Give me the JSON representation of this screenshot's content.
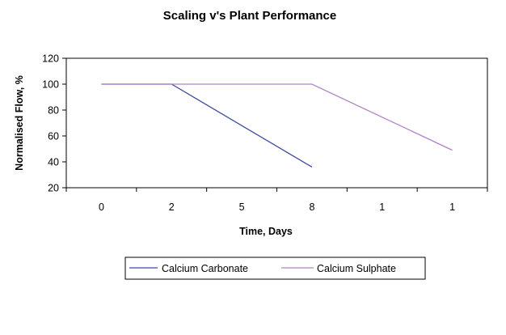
{
  "chart_data": {
    "type": "line",
    "title": "Scaling v's Plant Performance",
    "xlabel": "Time, Days",
    "ylabel": "Normalised Flow, %",
    "categories": [
      "0",
      "2",
      "5",
      "8",
      "1",
      "1"
    ],
    "ylim": [
      20,
      120
    ],
    "yticks": [
      20,
      40,
      60,
      80,
      100,
      120
    ],
    "grid": false,
    "legend_position": "bottom",
    "series": [
      {
        "name": "Calcium Carbonate",
        "color": "#3d4a9c",
        "points": [
          [
            0,
            100
          ],
          [
            1,
            100
          ],
          [
            3,
            36
          ]
        ]
      },
      {
        "name": "Calcium Sulphate",
        "color": "#b084c8",
        "points": [
          [
            0,
            100
          ],
          [
            3,
            100
          ],
          [
            5,
            49
          ]
        ]
      }
    ]
  }
}
